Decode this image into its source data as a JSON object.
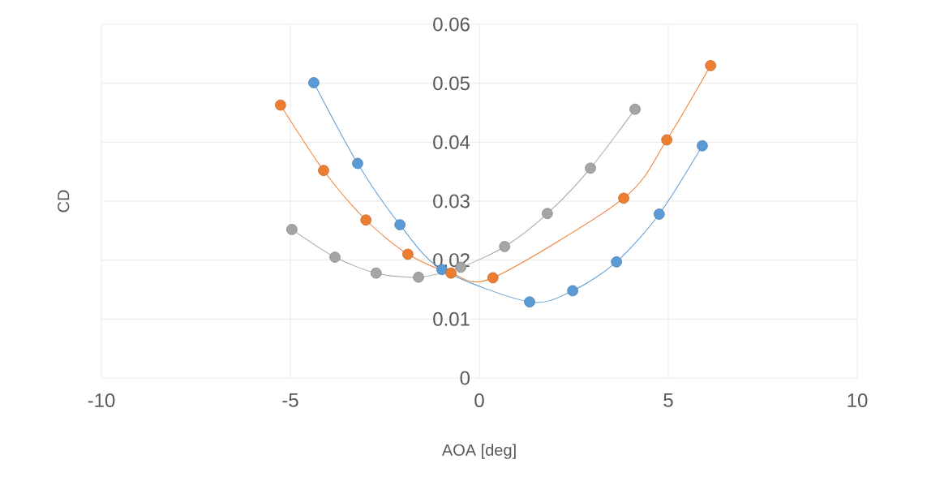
{
  "chart_data": {
    "type": "line",
    "xlabel": "AOA [deg]",
    "ylabel": "CD",
    "xlim": [
      -10,
      10
    ],
    "xticks": [
      -10,
      -5,
      0,
      5,
      10
    ],
    "ylim": [
      0,
      0.06
    ],
    "yticks": [
      0,
      0.01,
      0.02,
      0.03,
      0.04,
      0.05,
      0.06
    ],
    "grid": true,
    "marker": "circle",
    "line_style": "solid",
    "series": [
      {
        "color": "#5b9bd5",
        "x": [
          -4.38,
          -3.22,
          -2.1,
          -0.99,
          1.33,
          2.47,
          3.63,
          4.76,
          5.9
        ],
        "values": [
          0.0501,
          0.0364,
          0.026,
          0.0184,
          0.0129,
          0.0148,
          0.0197,
          0.0278,
          0.0394
        ]
      },
      {
        "color": "#ed7d31",
        "x": [
          -5.26,
          -4.12,
          -3.0,
          -1.89,
          -0.75,
          0.36,
          3.82,
          4.96,
          6.12
        ],
        "values": [
          0.0463,
          0.0352,
          0.0268,
          0.021,
          0.0178,
          0.017,
          0.0305,
          0.0404,
          0.053
        ]
      },
      {
        "color": "#a5a5a5",
        "x": [
          -4.96,
          -3.82,
          -2.73,
          -1.61,
          -0.49,
          0.67,
          1.8,
          2.94,
          4.12
        ],
        "values": [
          0.0252,
          0.0205,
          0.0178,
          0.0171,
          0.0188,
          0.0223,
          0.0279,
          0.0356,
          0.0456
        ]
      }
    ]
  }
}
